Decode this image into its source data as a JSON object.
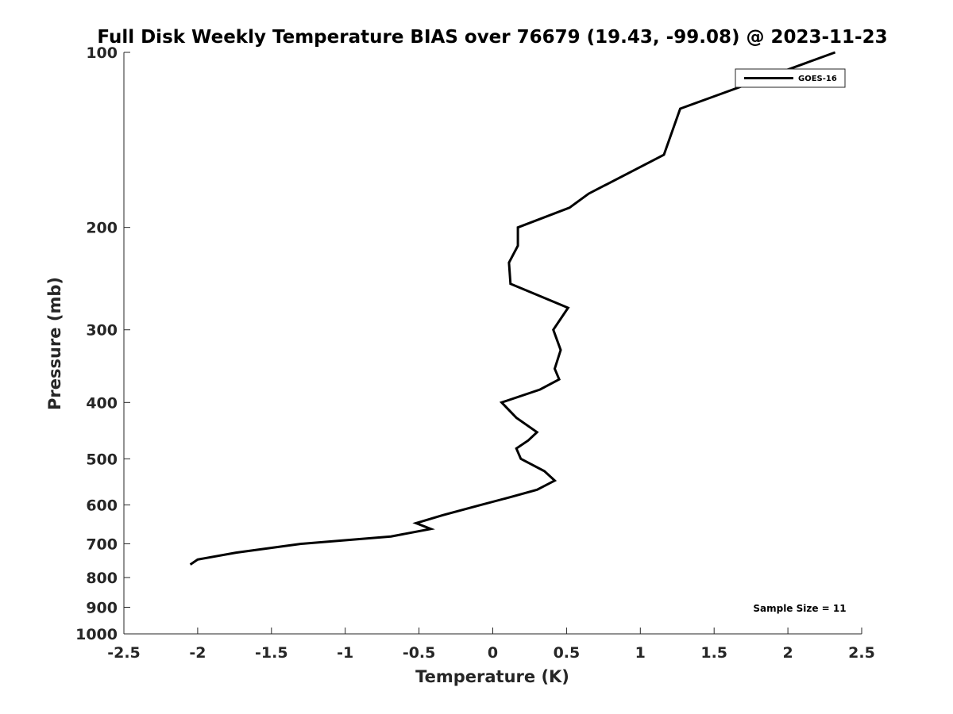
{
  "chart_data": {
    "type": "line",
    "title": "Full Disk Weekly Temperature BIAS over 76679 (19.43, -99.08) @ 2023-11-23",
    "xlabel": "Temperature (K)",
    "ylabel": "Pressure (mb)",
    "xlim": [
      -2.5,
      2.5
    ],
    "ylim": [
      100,
      1000
    ],
    "y_scale": "log",
    "y_reversed": true,
    "x_ticks": [
      -2.5,
      -2,
      -1.5,
      -1,
      -0.5,
      0,
      0.5,
      1,
      1.5,
      2,
      2.5
    ],
    "x_tick_labels": [
      "-2.5",
      "-2",
      "-1.5",
      "-1",
      "-0.5",
      "0",
      "0.5",
      "1",
      "1.5",
      "2",
      "2.5"
    ],
    "y_ticks": [
      100,
      200,
      300,
      400,
      500,
      600,
      700,
      800,
      900,
      1000
    ],
    "y_tick_labels": [
      "100",
      "200",
      "300",
      "400",
      "500",
      "600",
      "700",
      "800",
      "900",
      "1000"
    ],
    "grid": false,
    "legend_position": "top-right",
    "annotation": "Sample Size = 11",
    "series": [
      {
        "name": "GOES-16",
        "color": "#000000",
        "points": [
          {
            "x": 2.32,
            "y": 100
          },
          {
            "x": 1.27,
            "y": 125
          },
          {
            "x": 1.16,
            "y": 150
          },
          {
            "x": 0.65,
            "y": 175
          },
          {
            "x": 0.52,
            "y": 185
          },
          {
            "x": 0.17,
            "y": 200
          },
          {
            "x": 0.17,
            "y": 215
          },
          {
            "x": 0.11,
            "y": 230
          },
          {
            "x": 0.12,
            "y": 250
          },
          {
            "x": 0.51,
            "y": 275
          },
          {
            "x": 0.41,
            "y": 300
          },
          {
            "x": 0.46,
            "y": 325
          },
          {
            "x": 0.42,
            "y": 350
          },
          {
            "x": 0.45,
            "y": 365
          },
          {
            "x": 0.32,
            "y": 380
          },
          {
            "x": 0.06,
            "y": 400
          },
          {
            "x": 0.16,
            "y": 425
          },
          {
            "x": 0.3,
            "y": 450
          },
          {
            "x": 0.24,
            "y": 465
          },
          {
            "x": 0.16,
            "y": 480
          },
          {
            "x": 0.19,
            "y": 500
          },
          {
            "x": 0.35,
            "y": 525
          },
          {
            "x": 0.42,
            "y": 545
          },
          {
            "x": 0.3,
            "y": 565
          },
          {
            "x": 0.14,
            "y": 580
          },
          {
            "x": -0.08,
            "y": 600
          },
          {
            "x": -0.34,
            "y": 625
          },
          {
            "x": -0.52,
            "y": 645
          },
          {
            "x": -0.42,
            "y": 660
          },
          {
            "x": -0.69,
            "y": 680
          },
          {
            "x": -1.3,
            "y": 700
          },
          {
            "x": -1.74,
            "y": 725
          },
          {
            "x": -2.0,
            "y": 745
          },
          {
            "x": -2.05,
            "y": 760
          }
        ]
      }
    ]
  }
}
